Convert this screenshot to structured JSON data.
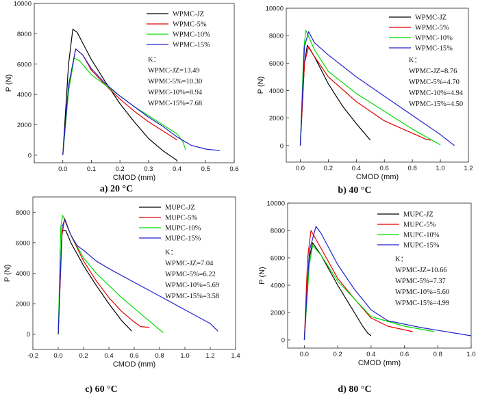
{
  "chart_data": [
    {
      "type": "line",
      "caption": "a) 20 °C",
      "xlabel": "CMOD (mm)",
      "ylabel": "P (N)",
      "xlim": [
        -0.1,
        0.6
      ],
      "ylim": [
        -500,
        10000
      ],
      "xticks": [
        -0.1,
        0.0,
        0.1,
        0.2,
        0.3,
        0.4,
        0.5,
        0.6
      ],
      "xtick_labels": [
        "",
        "0.0",
        "0.1",
        "0.2",
        "0.3",
        "0.4",
        "0.5",
        "0.6"
      ],
      "yticks": [
        0,
        2000,
        4000,
        6000,
        8000,
        10000
      ],
      "legend_position": "top-right",
      "k_title": "K：",
      "k_lines": [
        "WPMC-JZ=13.49",
        "WPMC-5%=10.30",
        "WPMC-10%=8.94",
        "WPMC-15%=7.68"
      ],
      "series": [
        {
          "name": "WPMC-JZ",
          "color": "#000000",
          "x": [
            0.0,
            0.02,
            0.035,
            0.05,
            0.1,
            0.15,
            0.2,
            0.25,
            0.3,
            0.35,
            0.4
          ],
          "y": [
            0,
            6000,
            8300,
            8100,
            6300,
            4800,
            3400,
            2200,
            1100,
            300,
            -350
          ]
        },
        {
          "name": "WPMC-5%",
          "color": "#e00000",
          "x": [
            0.0,
            0.02,
            0.045,
            0.07,
            0.1,
            0.15,
            0.2,
            0.25,
            0.3,
            0.35,
            0.4
          ],
          "y": [
            0,
            4500,
            7000,
            6600,
            5600,
            4600,
            3700,
            2900,
            2200,
            1600,
            1000
          ]
        },
        {
          "name": "WPMC-10%",
          "color": "#00dd00",
          "x": [
            0.0,
            0.02,
            0.04,
            0.06,
            0.1,
            0.15,
            0.2,
            0.25,
            0.3,
            0.35,
            0.4,
            0.42,
            0.43
          ],
          "y": [
            0,
            4200,
            6400,
            6200,
            5300,
            4600,
            3900,
            3200,
            2600,
            2000,
            1400,
            900,
            350
          ]
        },
        {
          "name": "WPMC-15%",
          "color": "#2020cc",
          "x": [
            0.0,
            0.02,
            0.045,
            0.07,
            0.1,
            0.15,
            0.2,
            0.25,
            0.3,
            0.35,
            0.4,
            0.45,
            0.5,
            0.55
          ],
          "y": [
            0,
            4600,
            7000,
            6600,
            5700,
            4700,
            3900,
            3200,
            2500,
            1900,
            1200,
            650,
            400,
            300
          ]
        }
      ]
    },
    {
      "type": "line",
      "caption": "b) 40 °C",
      "xlabel": "CMOD (mm)",
      "ylabel": "P (N)",
      "xlim": [
        -0.1,
        1.2
      ],
      "ylim": [
        -1200,
        10000
      ],
      "xticks": [
        0.0,
        0.2,
        0.4,
        0.6,
        0.8,
        1.0,
        1.2
      ],
      "xtick_labels": [
        "0.0",
        "0.2",
        "0.4",
        "0.6",
        "0.8",
        "1.0",
        "1.2"
      ],
      "yticks": [
        0,
        2000,
        4000,
        6000,
        8000,
        10000
      ],
      "legend_position": "top-right",
      "k_title": "K：",
      "k_lines": [
        "WPMC-JZ=8.76",
        "WPMC-5%=4.70",
        "WPMC-10%=4.94",
        "WPMC-15%=4.50"
      ],
      "series": [
        {
          "name": "WPMC-JZ",
          "color": "#000000",
          "x": [
            0.0,
            0.03,
            0.05,
            0.1,
            0.2,
            0.3,
            0.4,
            0.5
          ],
          "y": [
            0,
            6000,
            7300,
            6500,
            4500,
            2900,
            1600,
            400
          ]
        },
        {
          "name": "WPMC-5%",
          "color": "#e00000",
          "x": [
            0.0,
            0.03,
            0.06,
            0.1,
            0.2,
            0.4,
            0.6,
            0.8,
            0.9,
            0.93
          ],
          "y": [
            0,
            6000,
            7200,
            6500,
            5000,
            3200,
            1800,
            900,
            450,
            400
          ]
        },
        {
          "name": "WPMC-10%",
          "color": "#00dd00",
          "x": [
            0.0,
            0.025,
            0.04,
            0.1,
            0.2,
            0.4,
            0.6,
            0.8,
            1.0
          ],
          "y": [
            0,
            7000,
            8400,
            7000,
            5400,
            3800,
            2500,
            1200,
            50
          ]
        },
        {
          "name": "WPMC-15%",
          "color": "#2020cc",
          "x": [
            0.0,
            0.03,
            0.06,
            0.1,
            0.2,
            0.4,
            0.6,
            0.8,
            1.0,
            1.1
          ],
          "y": [
            0,
            7200,
            8300,
            7500,
            6600,
            5000,
            3600,
            2200,
            800,
            0
          ]
        }
      ]
    },
    {
      "type": "line",
      "caption": "c) 60 °C",
      "xlabel": "CMOD (mm)",
      "ylabel": "P (N)",
      "xlim": [
        -0.2,
        1.4
      ],
      "ylim": [
        -1000,
        9000
      ],
      "xticks": [
        -0.2,
        0.0,
        0.2,
        0.4,
        0.6,
        0.8,
        1.0,
        1.2,
        1.4
      ],
      "xtick_labels": [
        "-0.2",
        "0.0",
        "0.2",
        "0.4",
        "0.6",
        "0.8",
        "1.0",
        "1.2",
        "1.4"
      ],
      "yticks": [
        0,
        2000,
        4000,
        6000,
        8000
      ],
      "legend_position": "top-right",
      "k_title": "K：",
      "k_lines": [
        "WPMC-JZ=7.04",
        "WPMC-5%=6.22",
        "WPMC-10%=5.69",
        "WPMC-15%=3.58"
      ],
      "series": [
        {
          "name": "MUPC-JZ",
          "color": "#000000",
          "x": [
            0.0,
            0.03,
            0.06,
            0.1,
            0.2,
            0.3,
            0.4,
            0.5,
            0.58
          ],
          "y": [
            0,
            6800,
            6800,
            6000,
            4500,
            3200,
            2000,
            900,
            200
          ]
        },
        {
          "name": "MUPC-5%",
          "color": "#e00000",
          "x": [
            0.0,
            0.03,
            0.05,
            0.1,
            0.2,
            0.3,
            0.4,
            0.5,
            0.6,
            0.65,
            0.72
          ],
          "y": [
            0,
            6500,
            7600,
            6500,
            4800,
            3500,
            2400,
            1500,
            800,
            500,
            450
          ]
        },
        {
          "name": "MUPC-10%",
          "color": "#00dd00",
          "x": [
            0.0,
            0.02,
            0.035,
            0.1,
            0.2,
            0.3,
            0.4,
            0.5,
            0.6,
            0.7,
            0.8,
            0.83
          ],
          "y": [
            0,
            7000,
            7800,
            6500,
            5000,
            4000,
            3200,
            2400,
            1700,
            1000,
            300,
            100
          ]
        },
        {
          "name": "MUPC-15%",
          "color": "#2020cc",
          "x": [
            0.0,
            0.03,
            0.05,
            0.1,
            0.15,
            0.2,
            0.3,
            0.4,
            0.6,
            0.8,
            1.0,
            1.2,
            1.26
          ],
          "y": [
            0,
            7000,
            7500,
            6500,
            5800,
            5500,
            4800,
            4300,
            3400,
            2500,
            1600,
            700,
            200
          ]
        }
      ]
    },
    {
      "type": "line",
      "caption": "d) 80 °C",
      "xlabel": "CMOD (mm)",
      "ylabel": "P (N)",
      "xlim": [
        -0.1,
        1.0
      ],
      "ylim": [
        -600,
        10000
      ],
      "xticks": [
        0.0,
        0.2,
        0.4,
        0.6,
        0.8,
        1.0
      ],
      "xtick_labels": [
        "0.0",
        "0.2",
        "0.4",
        "0.6",
        "0.8",
        "1.0"
      ],
      "yticks": [
        0,
        2000,
        4000,
        6000,
        8000,
        10000
      ],
      "legend_position": "top-right",
      "k_title": "K：",
      "k_lines": [
        "WPMC-JZ=10.66",
        "WPMC-5%=7.37",
        "WPMC-10%=5.60",
        "WPMC-15%=4.99"
      ],
      "series": [
        {
          "name": "MUPC-JZ",
          "color": "#000000",
          "x": [
            0.0,
            0.03,
            0.05,
            0.1,
            0.2,
            0.3,
            0.35,
            0.38,
            0.4
          ],
          "y": [
            0,
            6000,
            7100,
            6200,
            4000,
            2000,
            1000,
            500,
            300
          ]
        },
        {
          "name": "MUPC-5%",
          "color": "#e00000",
          "x": [
            0.0,
            0.02,
            0.04,
            0.1,
            0.2,
            0.3,
            0.4,
            0.5,
            0.65
          ],
          "y": [
            0,
            6000,
            8000,
            6700,
            4500,
            3000,
            1600,
            1000,
            600
          ]
        },
        {
          "name": "MUPC-10%",
          "color": "#00dd00",
          "x": [
            0.0,
            0.03,
            0.05,
            0.1,
            0.2,
            0.3,
            0.4,
            0.6,
            0.78
          ],
          "y": [
            0,
            5500,
            6900,
            6200,
            4300,
            3000,
            1700,
            1000,
            600
          ]
        },
        {
          "name": "MUPC-15%",
          "color": "#2020cc",
          "x": [
            0.0,
            0.03,
            0.07,
            0.1,
            0.2,
            0.3,
            0.4,
            0.5,
            0.7,
            0.9,
            1.0
          ],
          "y": [
            0,
            6500,
            8300,
            7800,
            5500,
            3700,
            2200,
            1400,
            900,
            500,
            300
          ]
        }
      ]
    }
  ]
}
